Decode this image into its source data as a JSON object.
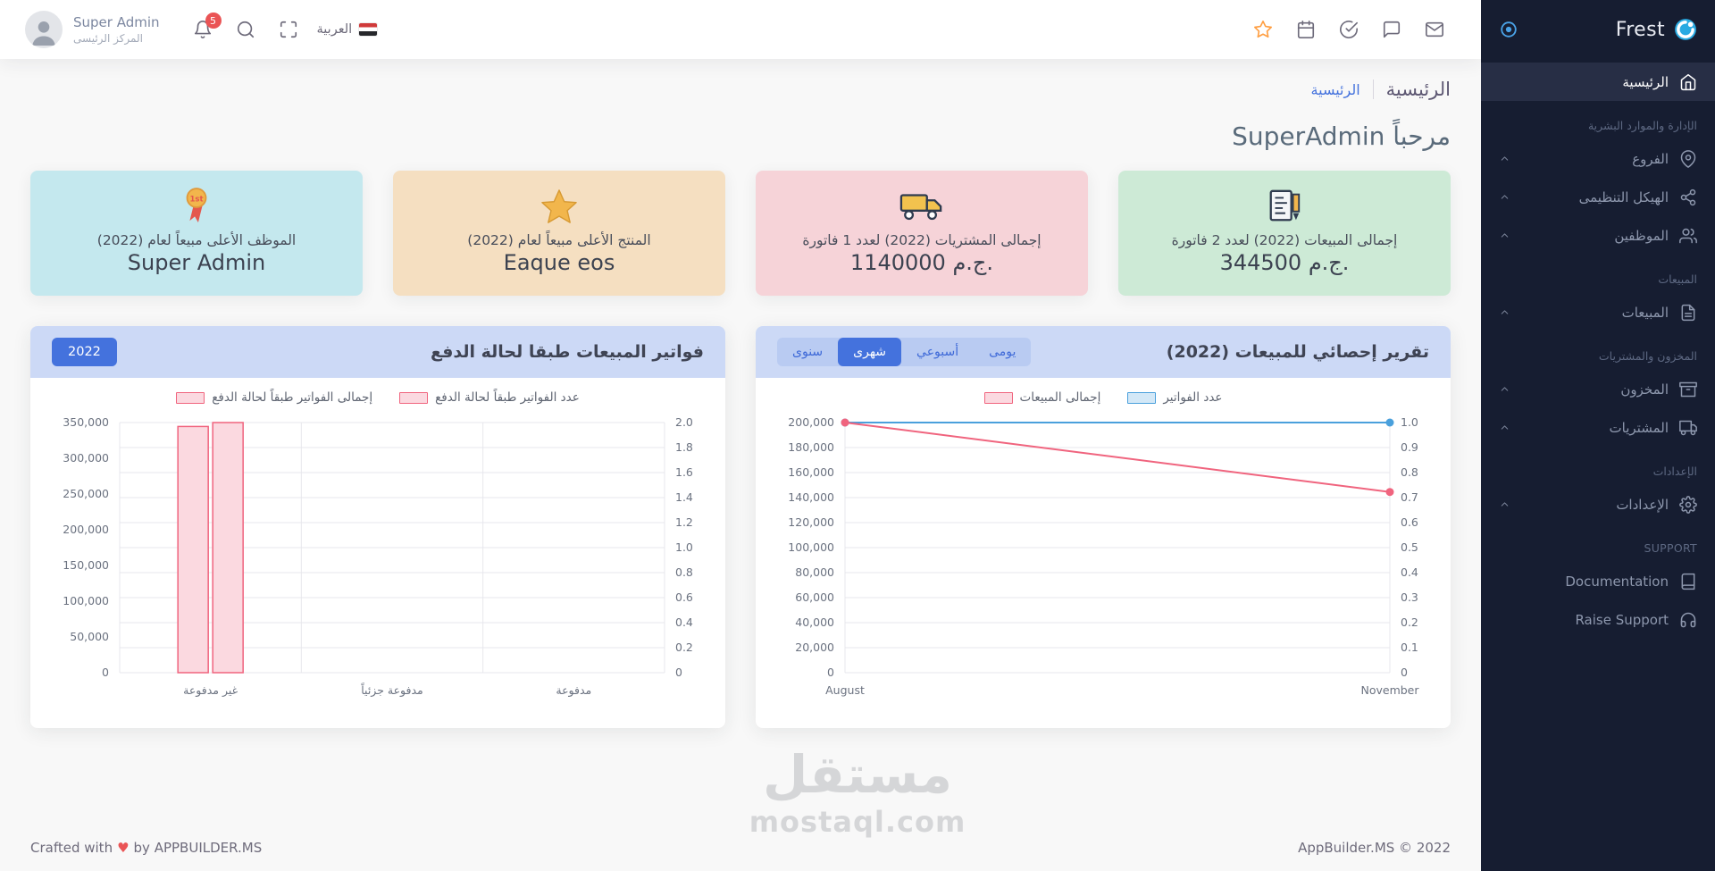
{
  "brand": {
    "name": "Frest"
  },
  "header": {
    "user": {
      "name": "Super Admin",
      "branch": "المركز الرئيسى"
    },
    "notification_count": "5",
    "language_label": "العربية"
  },
  "sidebar": {
    "home_label": "الرئيسية",
    "sections": [
      {
        "title": "الإدارة والموارد البشرية",
        "items": [
          {
            "label": "الفروع"
          },
          {
            "label": "الهيكل التنظيمى"
          },
          {
            "label": "الموظفين"
          }
        ]
      },
      {
        "title": "المبيعات",
        "items": [
          {
            "label": "المبيعات"
          }
        ]
      },
      {
        "title": "المخزون والمشتريات",
        "items": [
          {
            "label": "المخزون"
          },
          {
            "label": "المشتريات"
          }
        ]
      },
      {
        "title": "الإعدادات",
        "items": [
          {
            "label": "الإعدادات"
          }
        ]
      },
      {
        "title": "SUPPORT",
        "items": [
          {
            "label": "Documentation"
          },
          {
            "label": "Raise Support"
          }
        ]
      }
    ]
  },
  "breadcrumb": {
    "page_title": "الرئيسية",
    "link": "الرئيسية"
  },
  "welcome_title": "مرحباً SuperAdmin",
  "cards": {
    "items": [
      {
        "label": "إجمالى المبيعات (2022) لعدد 2 فاتورة",
        "value": "344500 ج.م.",
        "bg": "#cdead6",
        "icon": "invoice-pencil-icon"
      },
      {
        "label": "إجمالى المشتريات (2022) لعدد 1 فاتورة",
        "value": "1140000 ج.م.",
        "bg": "#f6d3d8",
        "icon": "delivery-truck-icon"
      },
      {
        "label": "المنتج الأعلى مبيعاً لعام (2022)",
        "value": "Eaque eos",
        "bg": "#f5dfc1",
        "icon": "gold-star-icon"
      },
      {
        "label": "الموظف الأعلى مبيعاً لعام (2022)",
        "value": "Super Admin",
        "bg": "#c4e8ee",
        "icon": "medal-icon"
      }
    ]
  },
  "panels": {
    "sales_report": {
      "title": "تقرير إحصائي للمبيعات (2022)",
      "toggles": [
        {
          "label": "يومى",
          "active": false
        },
        {
          "label": "أسبوعي",
          "active": false
        },
        {
          "label": "شهرى",
          "active": true
        },
        {
          "label": "سنوى",
          "active": false
        }
      ]
    },
    "invoices_by_status": {
      "title": "فواتير المبيعات طبقا لحالة الدفع",
      "year_button": "2022"
    }
  },
  "chart_data": [
    {
      "type": "line",
      "title": "تقرير إحصائي للمبيعات (2022)",
      "x": [
        "August",
        "November"
      ],
      "series": [
        {
          "name": "إجمالى المبيعات",
          "axis": "left",
          "values": [
            200000,
            144500
          ],
          "color": "#f0647e",
          "fill": "#fbd9e0"
        },
        {
          "name": "عدد الفواتير",
          "axis": "right",
          "values": [
            1,
            1
          ],
          "color": "#4aa0dc",
          "fill": "#d3e8f7"
        }
      ],
      "left_axis": {
        "min": 0,
        "max": 200000,
        "step": 20000
      },
      "right_axis": {
        "min": 0,
        "max": 1,
        "step": 0.1
      },
      "legend_position": "top",
      "grid": true
    },
    {
      "type": "bar",
      "title": "فواتير المبيعات طبقا لحالة الدفع",
      "categories": [
        "غير مدفوعة",
        "مدفوعة جزئياً",
        "مدفوعة"
      ],
      "series": [
        {
          "name": "إجمالى الفواتير طبقاً لحالة الدفع",
          "axis": "left",
          "values": [
            344500,
            0,
            0
          ],
          "color": "#f0647e",
          "fill": "#fbd9e0"
        },
        {
          "name": "عدد الفواتير طبقاً لحالة الدفع",
          "axis": "right",
          "values": [
            2,
            0,
            0
          ],
          "color": "#f0647e",
          "fill": "#fbd9e0"
        }
      ],
      "left_axis": {
        "min": 0,
        "max": 350000,
        "step": 50000
      },
      "right_axis": {
        "min": 0,
        "max": 2,
        "step": 0.2
      },
      "legend_position": "top",
      "grid": true
    }
  ],
  "watermark": {
    "line1": "مستقل",
    "line2": "mostaql.com"
  },
  "footer": {
    "crafted_prefix": "Crafted with",
    "crafted_suffix": "by APPBUILDER.MS",
    "copyright": "AppBuilder.MS © 2022"
  },
  "colors": {
    "accent": "#4472dd",
    "sidebar_bg": "#161d31",
    "panel_header_bg": "#ccd9f6",
    "badge_red": "#ea5455",
    "star_orange": "#ff9f43",
    "chart_pink": "#f0647e",
    "chart_blue": "#4aa0dc"
  }
}
